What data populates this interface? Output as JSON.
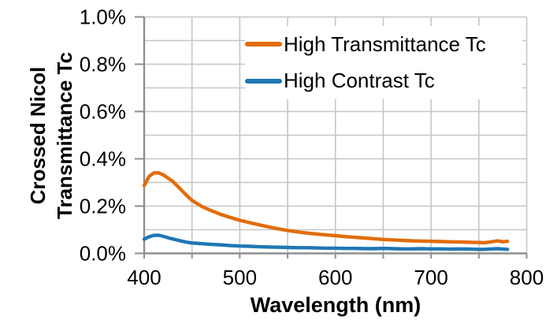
{
  "chart_data": {
    "type": "line",
    "title": "",
    "xlabel": "Wavelength (nm)",
    "ylabel": "Crossed Nicol Transmittance Tc",
    "ylabel_lines": [
      "Crossed Nicol",
      "Transmittance Tc"
    ],
    "xlim": [
      400,
      800
    ],
    "ylim_percent": [
      0.0,
      1.0
    ],
    "x_tick_labels": [
      "400",
      "500",
      "600",
      "700",
      "800"
    ],
    "x_tick_values": [
      400,
      500,
      600,
      700,
      800
    ],
    "x_minor_grid_step_nm": 50,
    "y_tick_labels": [
      "0.0%",
      "0.2%",
      "0.4%",
      "0.6%",
      "0.8%",
      "1.0%"
    ],
    "y_tick_values": [
      0.0,
      0.2,
      0.4,
      0.6,
      0.8,
      1.0
    ],
    "y_minor_grid_step_percent": 0.1,
    "grid": true,
    "legend_position": "top-right-inside",
    "x": [
      400,
      405,
      410,
      415,
      420,
      425,
      430,
      435,
      440,
      445,
      450,
      460,
      470,
      480,
      490,
      500,
      510,
      520,
      530,
      540,
      550,
      560,
      570,
      580,
      590,
      600,
      610,
      620,
      630,
      640,
      650,
      660,
      670,
      680,
      690,
      700,
      710,
      720,
      730,
      740,
      750,
      755,
      760,
      765,
      770,
      775,
      780
    ],
    "series": [
      {
        "name": "High Transmittance Tc",
        "color": "#E26C0A",
        "values": [
          0.287,
          0.325,
          0.34,
          0.341,
          0.332,
          0.318,
          0.304,
          0.284,
          0.263,
          0.243,
          0.224,
          0.199,
          0.181,
          0.165,
          0.152,
          0.14,
          0.13,
          0.121,
          0.112,
          0.104,
          0.097,
          0.091,
          0.086,
          0.082,
          0.078,
          0.075,
          0.071,
          0.068,
          0.065,
          0.062,
          0.059,
          0.057,
          0.055,
          0.053,
          0.052,
          0.051,
          0.05,
          0.049,
          0.048,
          0.047,
          0.046,
          0.045,
          0.047,
          0.05,
          0.053,
          0.049,
          0.051
        ]
      },
      {
        "name": "High Contrast Tc",
        "color": "#1F77B4",
        "values": [
          0.06,
          0.07,
          0.076,
          0.077,
          0.072,
          0.066,
          0.061,
          0.056,
          0.051,
          0.047,
          0.044,
          0.041,
          0.038,
          0.036,
          0.033,
          0.031,
          0.03,
          0.028,
          0.027,
          0.026,
          0.025,
          0.024,
          0.024,
          0.023,
          0.022,
          0.022,
          0.021,
          0.021,
          0.02,
          0.02,
          0.021,
          0.02,
          0.019,
          0.019,
          0.02,
          0.019,
          0.019,
          0.018,
          0.019,
          0.018,
          0.017,
          0.017,
          0.018,
          0.019,
          0.02,
          0.018,
          0.017
        ]
      }
    ],
    "colors": {
      "background": "#FFFFFF",
      "gridline": "#C6C6C6",
      "axis": "#8F8F8F",
      "text": "#000000",
      "series_1": "#E26C0A",
      "series_2": "#1F77B4"
    }
  }
}
